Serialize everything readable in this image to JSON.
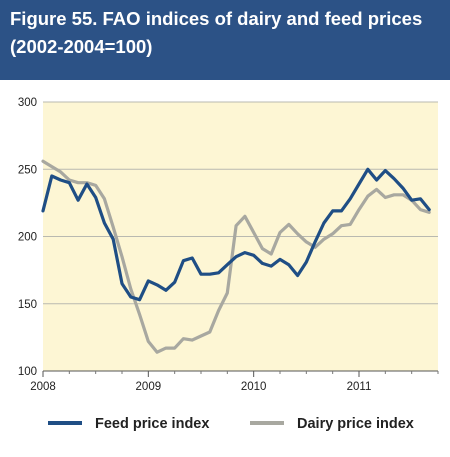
{
  "header": {
    "title_line1": "Figure 55.  FAO indices of dairy and feed prices",
    "title_line2": "(2002-2004=100)"
  },
  "chart_data": {
    "type": "line",
    "title": "Figure 55.  FAO indices of dairy and feed prices (2002-2004=100)",
    "xlabel": "",
    "ylabel": "",
    "xlim": [
      2008,
      2011.75
    ],
    "ylim": [
      100,
      300
    ],
    "xticks": [
      "2008",
      "2009",
      "2010",
      "2011"
    ],
    "yticks": [
      100,
      150,
      200,
      250,
      300
    ],
    "grid": "horizontal",
    "background": "#fdf6d4",
    "legend_position": "bottom",
    "x_step_months": 1,
    "x_start": "2008-01",
    "series": [
      {
        "name": "Feed price index",
        "color": "#1f4e85",
        "values": [
          219,
          245,
          242,
          240,
          227,
          239,
          229,
          210,
          198,
          165,
          155,
          153,
          167,
          164,
          160,
          166,
          182,
          184,
          172,
          172,
          173,
          179,
          185,
          188,
          186,
          180,
          178,
          183,
          179,
          171,
          181,
          196,
          210,
          219,
          219,
          228,
          239,
          250,
          242,
          249,
          243,
          236,
          227,
          228,
          220
        ]
      },
      {
        "name": "Dairy price index",
        "color": "#a8a8a0",
        "values": [
          256,
          252,
          248,
          242,
          240,
          240,
          238,
          228,
          207,
          185,
          161,
          142,
          122,
          114,
          117,
          117,
          124,
          123,
          126,
          129,
          145,
          158,
          208,
          215,
          203,
          191,
          187,
          203,
          209,
          202,
          196,
          192,
          198,
          202,
          208,
          209,
          220,
          230,
          235,
          229,
          231,
          231,
          227,
          220,
          218
        ]
      }
    ]
  }
}
